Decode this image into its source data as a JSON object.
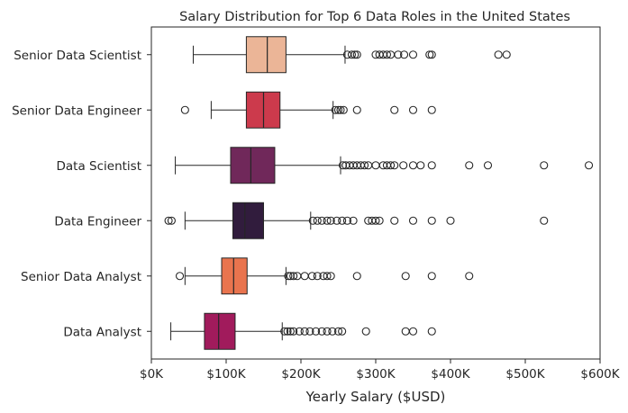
{
  "chart_data": {
    "type": "box",
    "orientation": "horizontal",
    "title": "Salary Distribution for Top 6 Data Roles in the United States",
    "xlabel": "Yearly Salary ($USD)",
    "ylabel": "",
    "xlim": [
      0,
      600000
    ],
    "xticks": [
      {
        "value": 0,
        "label": "$0K"
      },
      {
        "value": 100000,
        "label": "$100K"
      },
      {
        "value": 200000,
        "label": "$200K"
      },
      {
        "value": 300000,
        "label": "$300K"
      },
      {
        "value": 400000,
        "label": "$400K"
      },
      {
        "value": 500000,
        "label": "$500K"
      },
      {
        "value": 600000,
        "label": "$600K"
      }
    ],
    "grid": false,
    "legend": "none",
    "categories": [
      {
        "name": "Senior Data Scientist",
        "color": "#ebb597",
        "whisker_low": 56000,
        "q1": 127000,
        "median": 155000,
        "q3": 180000,
        "whisker_high": 259000,
        "outliers": [
          262000,
          268000,
          272000,
          275000,
          300000,
          305000,
          310000,
          315000,
          320000,
          330000,
          338000,
          350000,
          372000,
          375000,
          464000,
          475000
        ]
      },
      {
        "name": "Senior Data Engineer",
        "color": "#cc3a4c",
        "whisker_low": 80000,
        "q1": 127000,
        "median": 150000,
        "q3": 172000,
        "whisker_high": 243000,
        "outliers": [
          45000,
          246000,
          250000,
          253000,
          257000,
          275000,
          325000,
          350000,
          375000
        ]
      },
      {
        "name": "Data Scientist",
        "color": "#70285a",
        "whisker_low": 32000,
        "q1": 106000,
        "median": 133000,
        "q3": 165000,
        "whisker_high": 253000,
        "outliers": [
          256000,
          260000,
          265000,
          270000,
          275000,
          280000,
          285000,
          290000,
          300000,
          310000,
          315000,
          320000,
          325000,
          337000,
          350000,
          360000,
          375000,
          425000,
          450000,
          525000,
          585000
        ]
      },
      {
        "name": "Data Engineer",
        "color": "#311c3d",
        "whisker_low": 45000,
        "q1": 109000,
        "median": 125000,
        "q3": 150000,
        "whisker_high": 213000,
        "outliers": [
          23000,
          27000,
          216000,
          222000,
          228000,
          235000,
          240000,
          248000,
          255000,
          262000,
          270000,
          290000,
          295000,
          300000,
          305000,
          325000,
          350000,
          375000,
          400000,
          525000
        ]
      },
      {
        "name": "Senior Data Analyst",
        "color": "#e9744e",
        "whisker_low": 45000,
        "q1": 94000,
        "median": 110000,
        "q3": 128000,
        "whisker_high": 180000,
        "outliers": [
          38000,
          183000,
          186000,
          190000,
          195000,
          205000,
          215000,
          222000,
          230000,
          235000,
          240000,
          275000,
          340000,
          375000,
          425000
        ]
      },
      {
        "name": "Data Analyst",
        "color": "#a11b5c",
        "whisker_low": 26000,
        "q1": 71000,
        "median": 90000,
        "q3": 112000,
        "whisker_high": 175000,
        "outliers": [
          178000,
          182000,
          186000,
          190000,
          198000,
          205000,
          212000,
          220000,
          228000,
          235000,
          242000,
          250000,
          255000,
          287000,
          340000,
          350000,
          375000
        ]
      }
    ]
  }
}
